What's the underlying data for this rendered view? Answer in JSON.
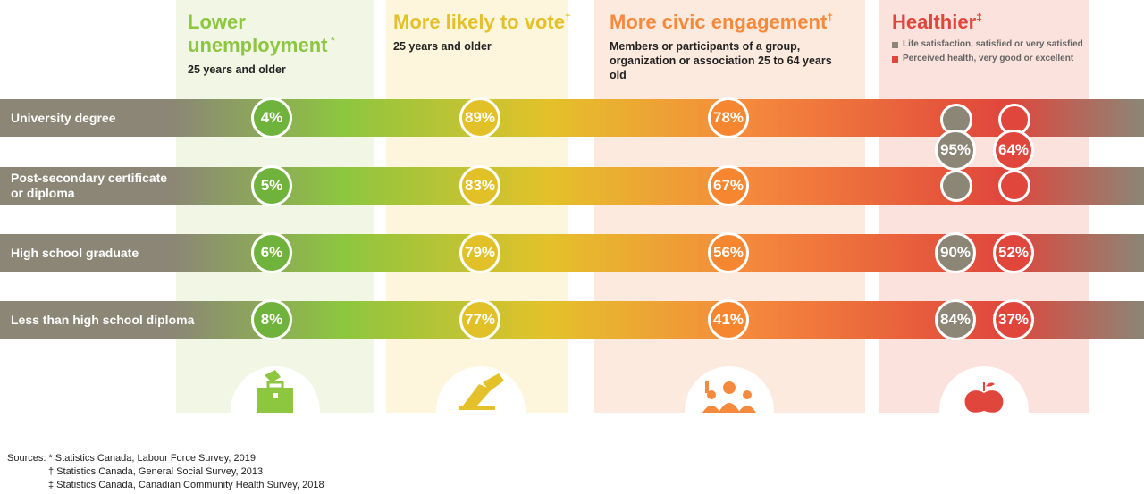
{
  "columns": [
    {
      "title": "Lower unemployment",
      "mark": "*",
      "subtitle": "25 years and older",
      "color": "#8dc63f",
      "bg": "#f2f6e4"
    },
    {
      "title": "More likely to vote",
      "mark": "†",
      "subtitle": "25 years and older",
      "color": "#e4c12a",
      "bg": "#fdf6dc"
    },
    {
      "title": "More civic engagement",
      "mark": "†",
      "subtitle": "Members or participants of a group, organization or association 25 to 64 years old",
      "color": "#f58a3c",
      "bg": "#fdeade"
    },
    {
      "title": "Healthier",
      "mark": "‡",
      "subtitle": "",
      "color": "#e0463c",
      "bg": "#fbe2dc"
    }
  ],
  "legend": [
    {
      "label": "Life satisfaction, satisfied or very satisfied",
      "color": "#8b8676"
    },
    {
      "label": "Perceived health, very good or excellent",
      "color": "#e0463c"
    }
  ],
  "rows": [
    {
      "label": "University degree",
      "unemployment": "4%",
      "vote": "89%",
      "civic": "78%"
    },
    {
      "label": "Post-secondary certificate or diploma",
      "unemployment": "5%",
      "vote": "83%",
      "civic": "67%"
    },
    {
      "label": "High school graduate",
      "unemployment": "6%",
      "vote": "79%",
      "civic": "56%",
      "life": "90%",
      "health": "52%"
    },
    {
      "label": "Less than high school diploma",
      "unemployment": "8%",
      "vote": "77%",
      "civic": "41%",
      "life": "84%",
      "health": "37%"
    }
  ],
  "postsecondary_health": {
    "life": "95%",
    "health": "64%"
  },
  "icons": [
    "briefcase-icon",
    "ballot-icon",
    "people-icon",
    "apple-icon"
  ],
  "sources": [
    "Sources: * Statistics Canada, Labour Force Survey, 2019",
    "† Statistics Canada, General Social Survey, 2013",
    "‡ Statistics Canada, Canadian Community Health Survey, 2018"
  ],
  "chart_data": {
    "type": "table",
    "categories": [
      "University degree",
      "Post-secondary certificate or diploma",
      "High school graduate",
      "Less than high school diploma"
    ],
    "series": [
      {
        "name": "Lower unemployment",
        "values": [
          4,
          5,
          6,
          8
        ]
      },
      {
        "name": "More likely to vote",
        "values": [
          89,
          83,
          79,
          77
        ]
      },
      {
        "name": "More civic engagement",
        "values": [
          78,
          67,
          56,
          41
        ]
      },
      {
        "name": "Life satisfaction, satisfied or very satisfied",
        "values": [
          95,
          95,
          90,
          84
        ]
      },
      {
        "name": "Perceived health, very good or excellent",
        "values": [
          64,
          64,
          52,
          37
        ]
      }
    ],
    "note_units": "%"
  }
}
